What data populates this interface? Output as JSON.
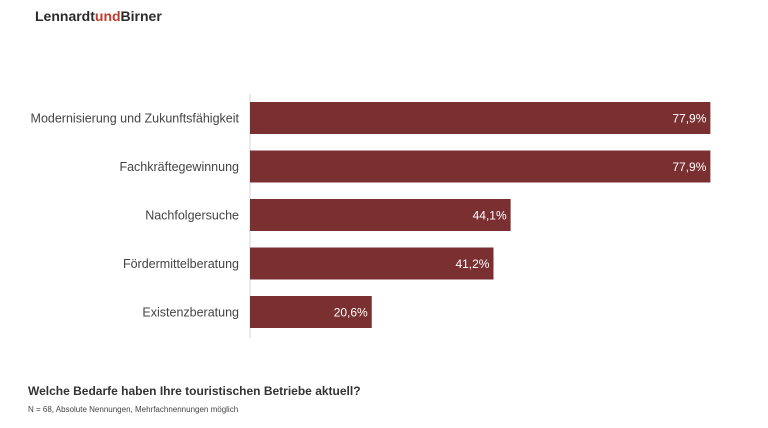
{
  "brand": {
    "part1": "Lennardt",
    "part2": "und",
    "part3": "Birner",
    "accent_color": "#c0392b"
  },
  "question": "Welche Bedarfe haben Ihre touristischen Betriebe aktuell?",
  "footnote": "N = 68, Absolute Nennungen, Mehrfachnennungen möglich",
  "chart_data": {
    "type": "bar",
    "orientation": "horizontal",
    "categories": [
      "Modernisierung und Zukunftsfähigkeit",
      "Fachkräftegewinnung",
      "Nachfolgersuche",
      "Fördermittelberatung",
      "Existenzberatung"
    ],
    "values": [
      77.9,
      77.9,
      44.1,
      41.2,
      20.6
    ],
    "value_labels": [
      "77,9%",
      "77,9%",
      "44,1%",
      "41,2%",
      "20,6%"
    ],
    "xlim": [
      0,
      100
    ],
    "bar_color": "#7a3030",
    "grid": false
  }
}
